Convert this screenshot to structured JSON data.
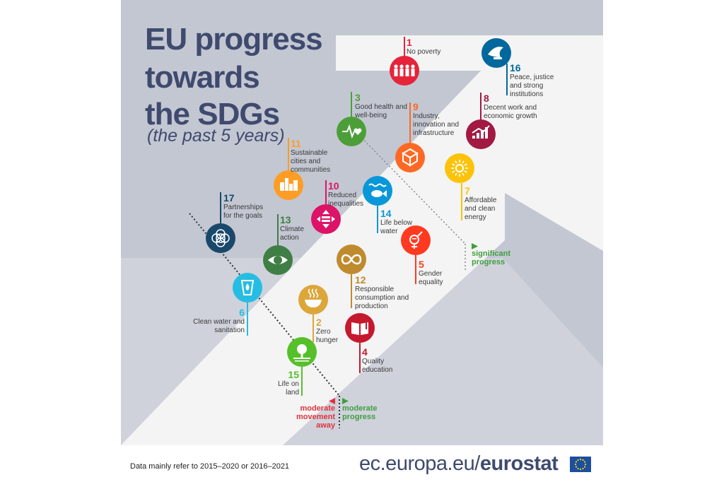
{
  "title": {
    "line1": "EU progress",
    "line2": "towards",
    "line3": "the SDGs",
    "subtitle": "(the past 5 years)"
  },
  "colors": {
    "panel": "#c3c7d2",
    "arrow": "#f4f4f4",
    "title": "#3f4a6e",
    "green_marker": "#3f9e3f",
    "red_marker": "#e0333b"
  },
  "goals": [
    {
      "id": 1,
      "num": "1",
      "label": "No poverty",
      "color": "#e5243b",
      "icon": "people-icon"
    },
    {
      "id": 16,
      "num": "16",
      "label": "Peace, justice and strong institutions",
      "color": "#00689d",
      "icon": "dove-icon"
    },
    {
      "id": 3,
      "num": "3",
      "label": "Good health and well-being",
      "color": "#4c9f38",
      "icon": "heartbeat-icon"
    },
    {
      "id": 9,
      "num": "9",
      "label": "Industry, innovation and infrastructure",
      "color": "#fd6925",
      "icon": "cubes-icon"
    },
    {
      "id": 8,
      "num": "8",
      "label": "Decent work and economic growth",
      "color": "#a21942",
      "icon": "growth-chart-icon"
    },
    {
      "id": 11,
      "num": "11",
      "label": "Sustainable cities and communities",
      "color": "#fd9d24",
      "icon": "city-icon"
    },
    {
      "id": 7,
      "num": "7",
      "label": "Affordable and clean energy",
      "color": "#fcc30b",
      "icon": "sun-icon"
    },
    {
      "id": 10,
      "num": "10",
      "label": "Reduced inequalities",
      "color": "#dd1367",
      "icon": "equality-icon"
    },
    {
      "id": 14,
      "num": "14",
      "label": "Life below water",
      "color": "#0a97d9",
      "icon": "fish-icon"
    },
    {
      "id": 17,
      "num": "17",
      "label": "Partnerships for the goals",
      "color": "#19486a",
      "icon": "rings-icon"
    },
    {
      "id": 13,
      "num": "13",
      "label": "Climate action",
      "color": "#3f7e44",
      "icon": "eye-globe-icon"
    },
    {
      "id": 5,
      "num": "5",
      "label": "Gender equality",
      "color": "#ff3a21",
      "icon": "gender-icon"
    },
    {
      "id": 12,
      "num": "12",
      "label": "Responsible consumption and production",
      "color": "#bf8b2e",
      "icon": "infinity-icon"
    },
    {
      "id": 6,
      "num": "6",
      "label": "Clean water and sanitation",
      "color": "#26bde2",
      "icon": "water-drop-icon"
    },
    {
      "id": 2,
      "num": "2",
      "label": "Zero hunger",
      "color": "#dda63a",
      "icon": "bowl-icon"
    },
    {
      "id": 4,
      "num": "4",
      "label": "Quality education",
      "color": "#c5192d",
      "icon": "book-icon"
    },
    {
      "id": 15,
      "num": "15",
      "label": "Life on land",
      "color": "#56c02b",
      "icon": "tree-icon"
    }
  ],
  "markers": {
    "significant": "significant progress",
    "moderate_progress": "moderate progress",
    "moderate_away": "moderate movement away"
  },
  "footer": {
    "note": "Data mainly refer to 2015–2020 or 2016–2021",
    "url_prefix": "ec.europa.eu/",
    "url_brand": "eurostat"
  }
}
